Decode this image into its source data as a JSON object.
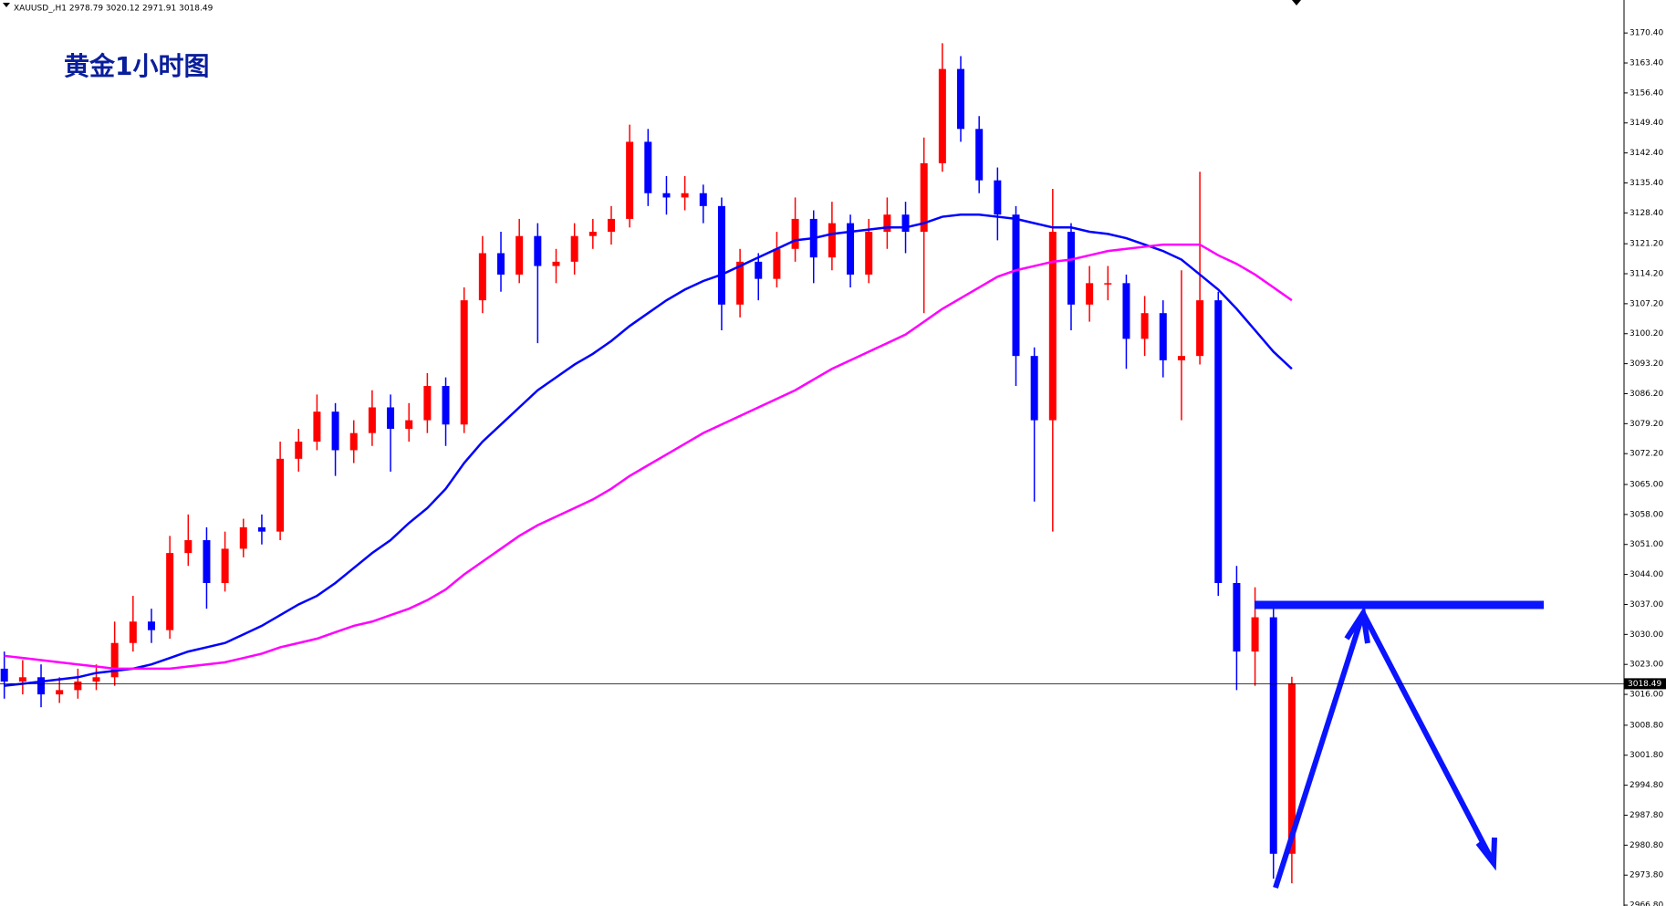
{
  "chart_data": {
    "type": "candlestick",
    "header": "XAUUSD_,H1  2978.79 3020.12 2971.91 3018.49",
    "title": "黄金1小时图",
    "up_color": "#ff0000",
    "down_color": "#0000ff",
    "ylim": [
      2966.6,
      3178.1
    ],
    "yticks": [
      {
        "value": 2966.8,
        "label": "2966.80"
      },
      {
        "value": 2973.8,
        "label": "2973.80"
      },
      {
        "value": 2980.8,
        "label": "2980.80"
      },
      {
        "value": 2987.8,
        "label": "2987.80"
      },
      {
        "value": 2994.8,
        "label": "2994.80"
      },
      {
        "value": 3001.8,
        "label": "3001.80"
      },
      {
        "value": 3008.8,
        "label": "3008.80"
      },
      {
        "value": 3016,
        "label": "3016.00"
      },
      {
        "value": 3023,
        "label": "3023.00"
      },
      {
        "value": 3030,
        "label": "3030.00"
      },
      {
        "value": 3037,
        "label": "3037.00"
      },
      {
        "value": 3044,
        "label": "3044.00"
      },
      {
        "value": 3051,
        "label": "3051.00"
      },
      {
        "value": 3058,
        "label": "3058.00"
      },
      {
        "value": 3065,
        "label": "3065.00"
      },
      {
        "value": 3072.2,
        "label": "3072.20"
      },
      {
        "value": 3079.2,
        "label": "3079.20"
      },
      {
        "value": 3086.2,
        "label": "3086.20"
      },
      {
        "value": 3093.2,
        "label": "3093.20"
      },
      {
        "value": 3100.2,
        "label": "3100.20"
      },
      {
        "value": 3107.2,
        "label": "3107.20"
      },
      {
        "value": 3114.2,
        "label": "3114.20"
      },
      {
        "value": 3121.2,
        "label": "3121.20"
      },
      {
        "value": 3128.4,
        "label": "3128.40"
      },
      {
        "value": 3135.4,
        "label": "3135.40"
      },
      {
        "value": 3142.4,
        "label": "3142.40"
      },
      {
        "value": 3149.4,
        "label": "3149.40"
      },
      {
        "value": 3156.4,
        "label": "3156.40"
      },
      {
        "value": 3163.4,
        "label": "3163.40"
      },
      {
        "value": 3170.4,
        "label": "3170.40"
      }
    ],
    "open": [
      3022,
      3019,
      3020,
      3016,
      3017,
      3019,
      3020,
      3028,
      3033,
      3031,
      3049,
      3052,
      3042,
      3050,
      3055,
      3054,
      3071,
      3075,
      3082,
      3073,
      3077,
      3083,
      3078,
      3080,
      3088,
      3079,
      3108,
      3119,
      3114,
      3123,
      3116,
      3117,
      3123,
      3124,
      3127,
      3145,
      3133,
      3132,
      3133,
      3130,
      3107,
      3117,
      3113,
      3120,
      3127,
      3118,
      3126,
      3114,
      3124,
      3128,
      3124,
      3140,
      3162,
      3148,
      3136,
      3128,
      3095,
      3080,
      3124,
      3107,
      3112,
      3112,
      3099,
      3105,
      3094,
      3095,
      3108,
      3042,
      3026,
      3034,
      2978.79
    ],
    "high": [
      3026,
      3024,
      3023,
      3020,
      3022,
      3023,
      3033,
      3039,
      3036,
      3053,
      3058,
      3055,
      3054,
      3057,
      3058,
      3075,
      3078,
      3086,
      3084,
      3080,
      3087,
      3086,
      3084,
      3091,
      3090,
      3111,
      3123,
      3124,
      3127,
      3126,
      3120,
      3126,
      3127,
      3130,
      3149,
      3148,
      3137,
      3137,
      3135,
      3132,
      3120,
      3119,
      3124,
      3132,
      3129,
      3131,
      3128,
      3127,
      3132,
      3131,
      3146,
      3168,
      3165,
      3151,
      3139,
      3130,
      3097,
      3134,
      3126,
      3116,
      3116,
      3114,
      3109,
      3108,
      3115,
      3138,
      3110,
      3046,
      3041,
      3036,
      3020.12
    ],
    "low": [
      3015,
      3016,
      3013,
      3014,
      3015,
      3017,
      3018,
      3026,
      3028,
      3029,
      3046,
      3036,
      3040,
      3048,
      3051,
      3052,
      3068,
      3073,
      3067,
      3070,
      3074,
      3068,
      3075,
      3077,
      3074,
      3077,
      3105,
      3110,
      3112,
      3098,
      3112,
      3114,
      3120,
      3121,
      3125,
      3130,
      3128,
      3129,
      3126,
      3101,
      3104,
      3108,
      3111,
      3117,
      3112,
      3115,
      3111,
      3112,
      3120,
      3119,
      3105,
      3138,
      3145,
      3133,
      3122,
      3088,
      3061,
      3054,
      3101,
      3103,
      3108,
      3092,
      3095,
      3090,
      3080,
      3093,
      3039,
      3017,
      3018,
      2973,
      2971.91
    ],
    "close": [
      3019,
      3020,
      3016,
      3017,
      3019,
      3020,
      3028,
      3033,
      3031,
      3049,
      3052,
      3042,
      3050,
      3055,
      3054,
      3071,
      3075,
      3082,
      3073,
      3077,
      3083,
      3078,
      3080,
      3088,
      3079,
      3108,
      3119,
      3114,
      3123,
      3116,
      3117,
      3123,
      3124,
      3127,
      3145,
      3133,
      3132,
      3133,
      3130,
      3107,
      3117,
      3113,
      3120,
      3127,
      3118,
      3126,
      3114,
      3124,
      3128,
      3124,
      3140,
      3162,
      3148,
      3136,
      3128,
      3095,
      3080,
      3124,
      3107,
      3112,
      3112,
      3099,
      3105,
      3094,
      3095,
      3108,
      3042,
      3026,
      3034,
      2978.79,
      3018.49
    ],
    "moving_averages": [
      {
        "color": "#0000ff",
        "values": [
          3018,
          3018.5,
          3019,
          3019.5,
          3020,
          3021,
          3021.5,
          3022,
          3023,
          3024.5,
          3026,
          3027,
          3028,
          3030,
          3032,
          3034.5,
          3037,
          3039,
          3042,
          3045.5,
          3049,
          3052,
          3056,
          3059.5,
          3064,
          3070,
          3075,
          3079,
          3083,
          3087,
          3090,
          3093,
          3095.5,
          3098.5,
          3102,
          3105,
          3108,
          3110.5,
          3112.5,
          3114,
          3116,
          3118,
          3120,
          3122,
          3122.5,
          3123.5,
          3124,
          3124.5,
          3125,
          3125,
          3126,
          3127.5,
          3128,
          3128,
          3127.5,
          3127,
          3126,
          3125,
          3125,
          3124,
          3123.5,
          3122.5,
          3121,
          3119.5,
          3117.5,
          3114,
          3110.5,
          3106,
          3101,
          3096,
          3092
        ]
      },
      {
        "color": "#ff00ff",
        "values": [
          3025,
          3024.5,
          3024,
          3023.5,
          3023,
          3022.5,
          3022,
          3022,
          3022,
          3022,
          3022.5,
          3023,
          3023.5,
          3024.5,
          3025.5,
          3027,
          3028,
          3029,
          3030.5,
          3032,
          3033,
          3034.5,
          3036,
          3038,
          3040.5,
          3044,
          3047,
          3050,
          3053,
          3055.5,
          3057.5,
          3059.5,
          3061.5,
          3064,
          3067,
          3069.5,
          3072,
          3074.5,
          3077,
          3079,
          3081,
          3083,
          3085,
          3087,
          3089.5,
          3092,
          3094,
          3096,
          3098,
          3100,
          3103,
          3106,
          3108.5,
          3111,
          3113.5,
          3115,
          3116,
          3117,
          3117.5,
          3118.5,
          3119.5,
          3120,
          3120.5,
          3121,
          3121,
          3121,
          3118.5,
          3116.5,
          3114,
          3111,
          3108
        ]
      }
    ]
  }
}
